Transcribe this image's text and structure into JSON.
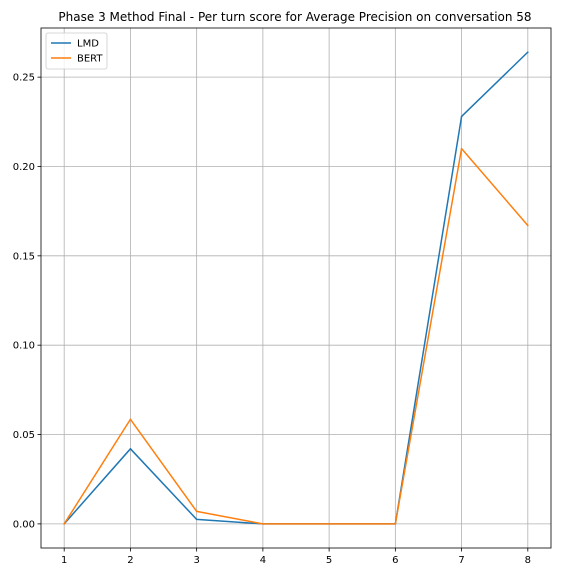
{
  "chart_data": {
    "type": "line",
    "title": "Phase 3 Method Final - Per turn score for Average Precision on conversation 58",
    "xlabel": "",
    "ylabel": "",
    "x": [
      1,
      2,
      3,
      4,
      5,
      6,
      7,
      8
    ],
    "xticks": [
      "1",
      "2",
      "3",
      "4",
      "5",
      "6",
      "7",
      "8"
    ],
    "yticks": [
      "0.00",
      "0.05",
      "0.10",
      "0.15",
      "0.20",
      "0.25"
    ],
    "ytick_values": [
      0,
      0.05,
      0.1,
      0.15,
      0.2,
      0.25
    ],
    "xlim": [
      0.65,
      8.35
    ],
    "ylim": [
      -0.0135,
      0.2775
    ],
    "grid": true,
    "legend_position": "upper-left",
    "series": [
      {
        "name": "LMD",
        "color": "#1f77b4",
        "values": [
          0.0,
          0.042,
          0.0025,
          0.0,
          0.0,
          0.0,
          0.228,
          0.264
        ]
      },
      {
        "name": "BERT",
        "color": "#ff7f0e",
        "values": [
          0.0,
          0.0585,
          0.007,
          0.0,
          0.0,
          0.0,
          0.21,
          0.167
        ]
      }
    ]
  }
}
